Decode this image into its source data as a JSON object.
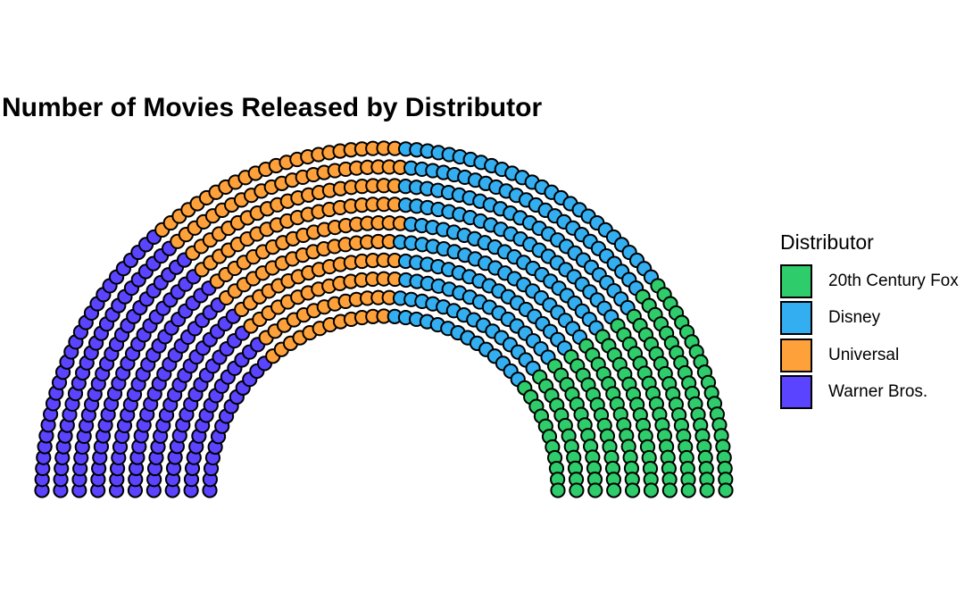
{
  "chart_data": {
    "type": "parliament",
    "title": "Number of Movies Released by Distributor",
    "legend": {
      "title": "Distributor",
      "position": "right",
      "entries": [
        "20th Century Fox",
        "Disney",
        "Universal",
        "Warner Bros."
      ]
    },
    "categories": [
      "20th Century Fox",
      "Disney",
      "Universal",
      "Warner Bros."
    ],
    "values": [
      157,
      204,
      180,
      209
    ],
    "colors": {
      "20th Century Fox": "#2ECC6A",
      "Disney": "#33AEF0",
      "Universal": "#FFA13A",
      "Warner Bros.": "#5B44FF"
    },
    "seat_order": [
      "Warner Bros.",
      "Universal",
      "Disney",
      "20th Century Fox"
    ],
    "rows": 10
  }
}
